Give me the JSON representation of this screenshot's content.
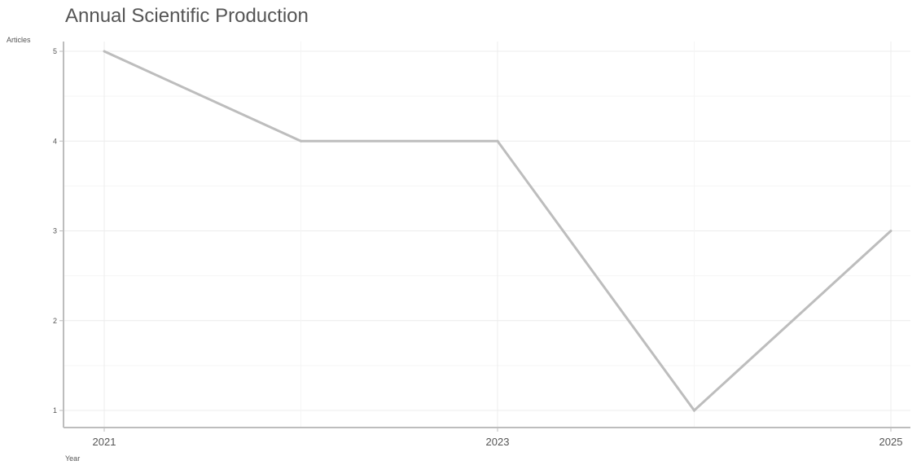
{
  "chart_data": {
    "type": "line",
    "title": "Annual Scientific Production",
    "xlabel": "Year",
    "ylabel": "Articles",
    "x": [
      2021,
      2022,
      2023,
      2024,
      2025
    ],
    "x_tick_labels": [
      "2021",
      "2023",
      "2025"
    ],
    "y_tick_labels": [
      "1",
      "2",
      "3",
      "4",
      "5"
    ],
    "series": [
      {
        "values": [
          5,
          4,
          4,
          1,
          3
        ]
      }
    ],
    "xlim": [
      2021,
      2025
    ],
    "ylim": [
      1,
      5
    ],
    "grid": true,
    "legend": "none",
    "colors": {
      "line": "#bdbdbd",
      "grid_major": "#ececec",
      "grid_minor": "#f5f5f5",
      "axis": "#bdbdbd",
      "text": "#555555"
    }
  }
}
